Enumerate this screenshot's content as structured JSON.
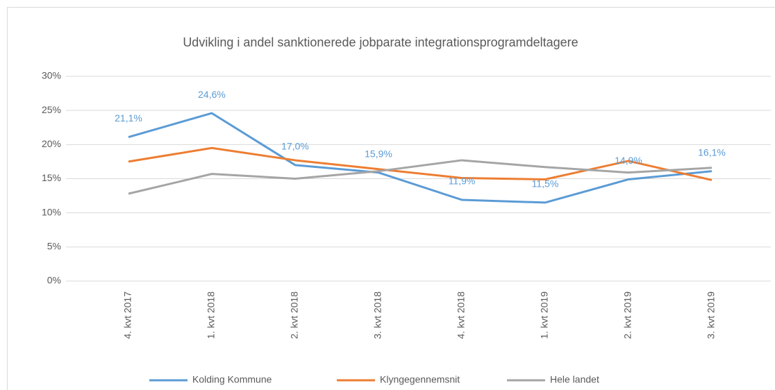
{
  "chart_data": {
    "type": "line",
    "title": "Udvikling i andel sanktionerede jobparate integrationsprogramdeltagere",
    "categories": [
      "4. kvt 2017",
      "1. kvt 2018",
      "2. kvt 2018",
      "3. kvt 2018",
      "4. kvt 2018",
      "1. kvt 2019",
      "2. kvt 2019",
      "3. kvt 2019"
    ],
    "series": [
      {
        "name": "Kolding Kommune",
        "color": "#5b9bd5",
        "values": [
          21.1,
          24.6,
          17.0,
          15.9,
          11.9,
          11.5,
          14.9,
          16.1
        ],
        "value_labels": [
          "21,1%",
          "24,6%",
          "17,0%",
          "15,9%",
          "11,9%",
          "11,5%",
          "14,9%",
          "16,1%"
        ]
      },
      {
        "name": "Klyngegennemsnit",
        "color": "#ed7d31",
        "values": [
          17.5,
          19.5,
          17.7,
          16.4,
          15.1,
          14.9,
          17.6,
          14.8
        ]
      },
      {
        "name": "Hele landet",
        "color": "#a5a5a5",
        "values": [
          12.8,
          15.7,
          15.0,
          16.1,
          17.7,
          16.7,
          15.9,
          16.6
        ]
      }
    ],
    "ylim": [
      0,
      30
    ],
    "yticks": [
      {
        "value": 0,
        "label": "0%"
      },
      {
        "value": 5,
        "label": "5%"
      },
      {
        "value": 10,
        "label": "10%"
      },
      {
        "value": 15,
        "label": "15%"
      },
      {
        "value": 20,
        "label": "20%"
      },
      {
        "value": 25,
        "label": "25%"
      },
      {
        "value": 30,
        "label": "30%"
      }
    ],
    "grid": true,
    "legend": "bottom"
  }
}
